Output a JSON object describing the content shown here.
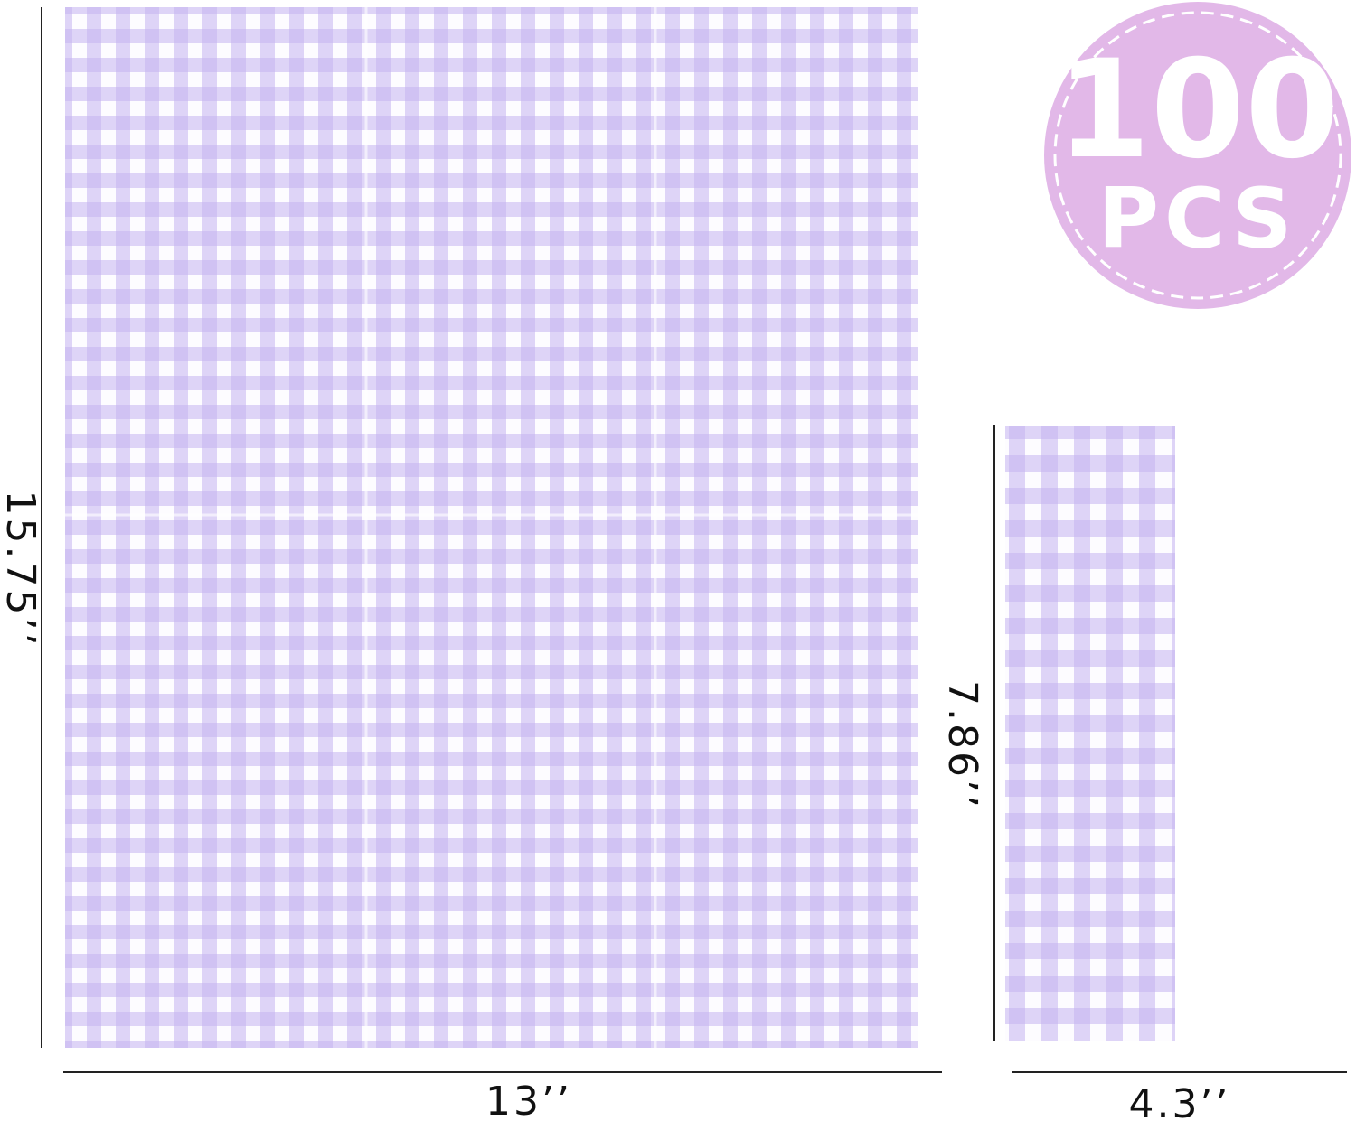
{
  "large_napkin": {
    "height_label": "15.75’’",
    "width_label": "13’’"
  },
  "small_napkin": {
    "height_label": "7.86’’",
    "width_label": "4.3’’"
  },
  "badge": {
    "count": "100",
    "unit": "PCS"
  }
}
